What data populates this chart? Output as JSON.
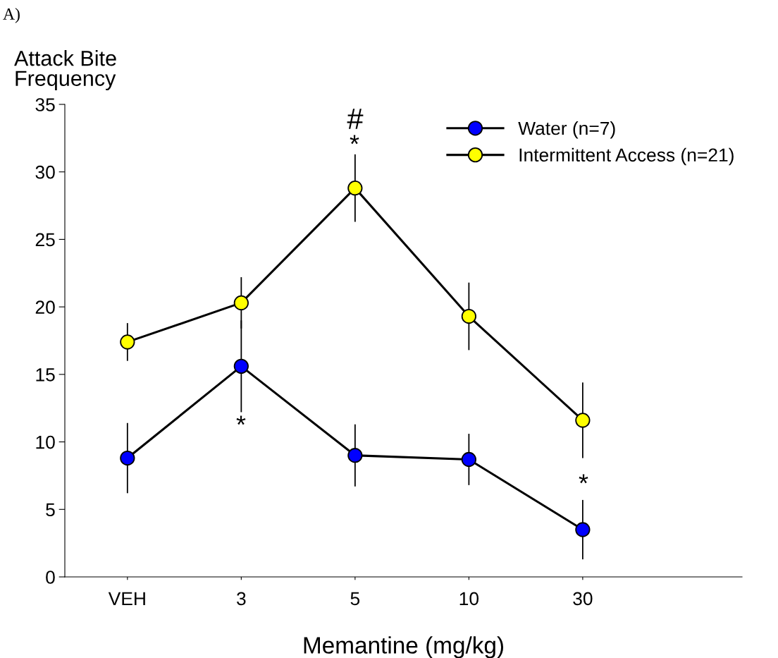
{
  "chart_data": {
    "type": "line",
    "xlabel": "Memantine (mg/kg)",
    "ylabel": "Attack Bite\nFrequency",
    "categories": [
      "VEH",
      "3",
      "5",
      "10",
      "30"
    ],
    "series": [
      {
        "name": "Water (n=7)",
        "color": "#0000ff",
        "values": [
          8.8,
          15.6,
          9.0,
          8.7,
          3.5
        ],
        "errors": [
          2.6,
          3.4,
          2.3,
          1.9,
          2.2
        ]
      },
      {
        "name": "Intermittent Access (n=21)",
        "color": "#ffff00",
        "values": [
          17.4,
          20.3,
          28.8,
          19.3,
          11.6
        ],
        "errors": [
          1.4,
          1.9,
          2.5,
          2.5,
          2.8
        ]
      }
    ],
    "ylim": [
      0,
      35
    ],
    "yticks": [
      0,
      5,
      10,
      15,
      20,
      25,
      30,
      35
    ],
    "marker": "circle",
    "line_style": "solid",
    "legend": "top right",
    "grid": false,
    "annotations": [
      "A)",
      "#",
      "*",
      "*",
      "*"
    ]
  }
}
